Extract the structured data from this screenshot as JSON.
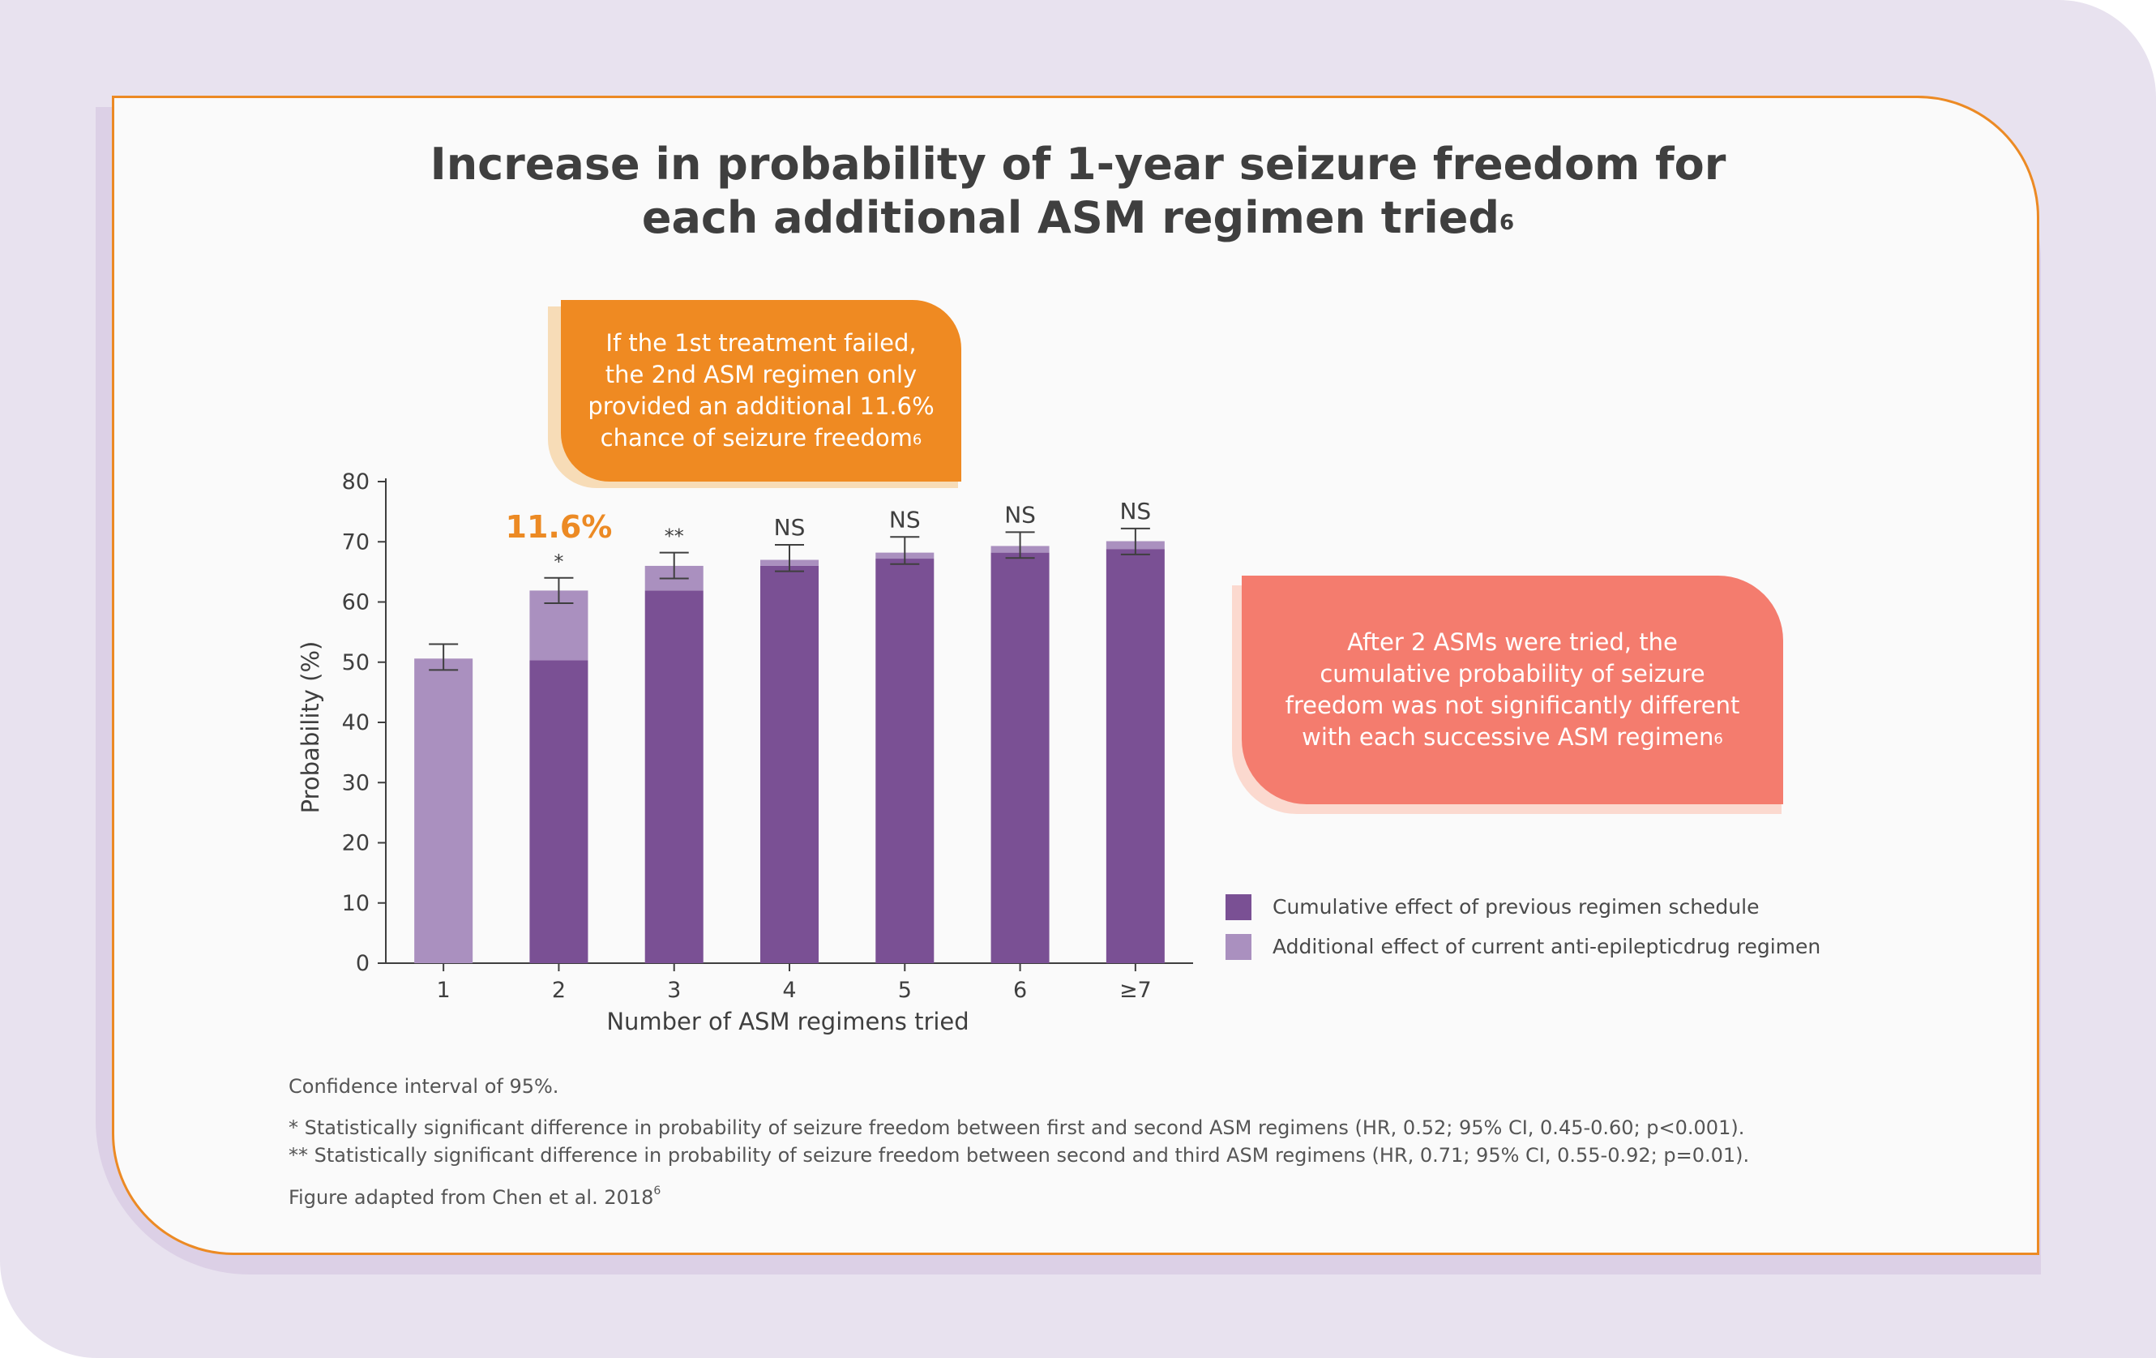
{
  "title": {
    "line1": "Increase in probability of 1-year seizure freedom for",
    "line2": "each additional ASM regimen tried",
    "ref": "6"
  },
  "callouts": {
    "orange": {
      "lines": [
        "If the 1st treatment failed,",
        "the 2nd ASM regimen only",
        "provided an additional 11.6%",
        "chance of seizure freedom"
      ],
      "ref": "6"
    },
    "coral": {
      "lines": [
        "After 2 ASMs were tried, the",
        "cumulative probability of seizure",
        "freedom was not significantly different",
        "with each successive ASM regimen"
      ],
      "ref": "6"
    }
  },
  "chart_data": {
    "type": "bar",
    "stacked": true,
    "xlabel": "Number of ASM regimens tried",
    "ylabel": "Probability (%)",
    "ylim": [
      0,
      80
    ],
    "yticks": [
      0,
      10,
      20,
      30,
      40,
      50,
      60,
      70,
      80
    ],
    "categories": [
      "1",
      "2",
      "3",
      "4",
      "5",
      "6",
      "≥7"
    ],
    "series": [
      {
        "name": "Cumulative effect of previous regimen schedule",
        "color": "#7a5094",
        "values": [
          0,
          50.3,
          61.9,
          66.0,
          67.2,
          68.2,
          68.8
        ]
      },
      {
        "name": "Additional effect of current anti-epilepticdrug regimen",
        "color": "#aa90bf",
        "values": [
          50.6,
          11.6,
          4.1,
          1.0,
          1.0,
          1.1,
          1.3
        ]
      }
    ],
    "error_bars": [
      {
        "low": 48.7,
        "high": 53.0
      },
      {
        "low": 59.8,
        "high": 64.0
      },
      {
        "low": 63.9,
        "high": 68.2
      },
      {
        "low": 65.1,
        "high": 69.5
      },
      {
        "low": 66.3,
        "high": 70.8
      },
      {
        "low": 67.3,
        "high": 71.6
      },
      {
        "low": 67.9,
        "high": 72.2
      }
    ],
    "significance_labels": [
      "",
      "*",
      "**",
      "NS",
      "NS",
      "NS",
      "NS"
    ],
    "highlight": {
      "category": "2",
      "text": "11.6%",
      "color": "#ec8a24"
    },
    "legend_position": "right"
  },
  "notes": {
    "ci": "Confidence interval of 95%.",
    "star1": "* Statistically significant difference in probability of seizure freedom between first and second ASM regimens (HR, 0.52; 95% CI, 0.45-0.60; p<0.001).",
    "star2": "** Statistically significant difference in probability of seizure freedom between second and third ASM regimens (HR, 0.71; 95% CI, 0.55-0.92; p=0.01).",
    "source": "Figure adapted from Chen et al. 2018",
    "source_ref": "6"
  },
  "colors": {
    "card_border": "#ec8a24",
    "background": "#e8e2ef",
    "orange_callout": "#ef8a22",
    "coral_callout": "#f47c6e"
  }
}
